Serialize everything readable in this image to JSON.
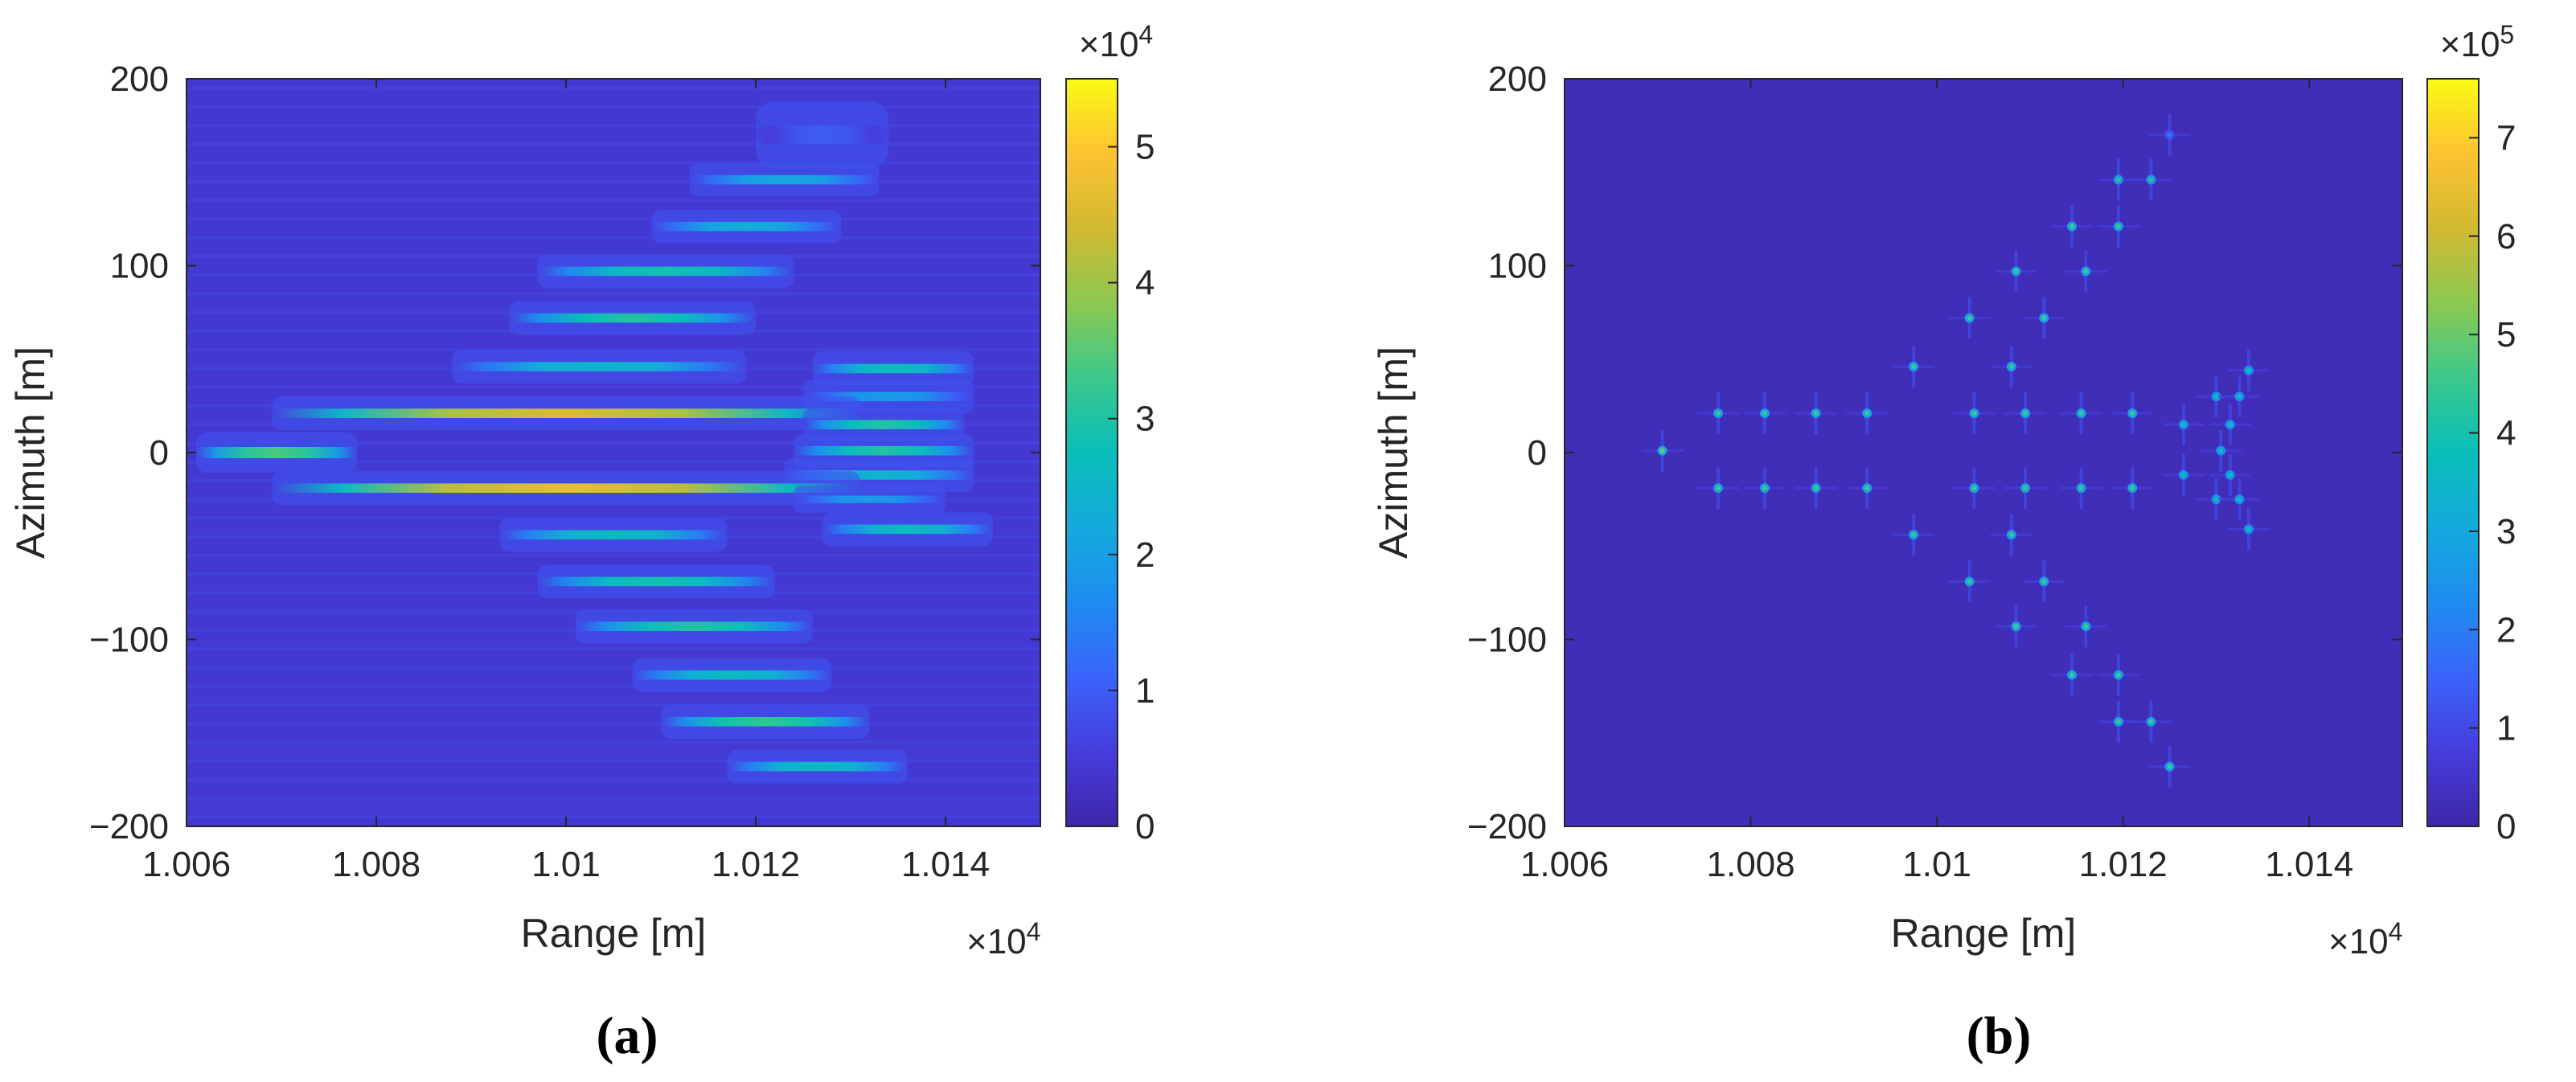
{
  "chart_data": [
    {
      "type": "heatmap",
      "panel": "a",
      "caption": "(a)",
      "xlabel": "Range [m]",
      "ylabel": "Azimuth [m]",
      "xlim": [
        1.006,
        1.015
      ],
      "ylim": [
        -200,
        200
      ],
      "x_ticks": [
        1.006,
        1.008,
        1.01,
        1.012,
        1.014
      ],
      "x_tick_labels": [
        "1.006",
        "1.008",
        "1.01",
        "1.012",
        "1.014"
      ],
      "y_ticks": [
        200,
        100,
        0,
        -100,
        -200
      ],
      "y_tick_labels": [
        "200",
        "100",
        "0",
        "−100",
        "−200"
      ],
      "x_multiplier": "×10",
      "x_multiplier_exp": "4",
      "colorbar": {
        "min": 0,
        "max": 5.5,
        "ticks": [
          0,
          1,
          2,
          3,
          4,
          5
        ],
        "tick_labels": [
          "0",
          "1",
          "2",
          "3",
          "4",
          "5"
        ],
        "multiplier": "×10",
        "multiplier_exp": "4"
      },
      "background_level": 0.08,
      "streaks": [
        {
          "x0": 1.0123,
          "x1": 1.0131,
          "y": 170,
          "peak": 0.18,
          "height": 10
        },
        {
          "x0": 1.0116,
          "x1": 1.013,
          "y": 146,
          "peak": 0.4,
          "height": 5
        },
        {
          "x0": 1.0112,
          "x1": 1.0126,
          "y": 121,
          "peak": 0.42,
          "height": 5
        },
        {
          "x0": 1.01,
          "x1": 1.0121,
          "y": 97,
          "peak": 0.52,
          "height": 5
        },
        {
          "x0": 1.0097,
          "x1": 1.0117,
          "y": 72,
          "peak": 0.55,
          "height": 5
        },
        {
          "x0": 1.0091,
          "x1": 1.0116,
          "y": 46,
          "peak": 0.45,
          "height": 5
        },
        {
          "x0": 1.0129,
          "x1": 1.014,
          "y": 45,
          "peak": 0.5,
          "height": 5
        },
        {
          "x0": 1.0128,
          "x1": 1.014,
          "y": 30,
          "peak": 0.35,
          "height": 5
        },
        {
          "x0": 1.0072,
          "x1": 1.0128,
          "y": 21,
          "peak": 0.82,
          "height": 5
        },
        {
          "x0": 1.0128,
          "x1": 1.0139,
          "y": 15,
          "peak": 0.55,
          "height": 5
        },
        {
          "x0": 1.0064,
          "x1": 1.0075,
          "y": 0,
          "peak": 0.62,
          "height": 6
        },
        {
          "x0": 1.0127,
          "x1": 1.014,
          "y": 1,
          "peak": 0.55,
          "height": 5
        },
        {
          "x0": 1.0126,
          "x1": 1.014,
          "y": -12,
          "peak": 0.45,
          "height": 5
        },
        {
          "x0": 1.0072,
          "x1": 1.0128,
          "y": -19,
          "peak": 0.85,
          "height": 5
        },
        {
          "x0": 1.0127,
          "x1": 1.0137,
          "y": -25,
          "peak": 0.35,
          "height": 4
        },
        {
          "x0": 1.013,
          "x1": 1.0142,
          "y": -41,
          "peak": 0.48,
          "height": 5
        },
        {
          "x0": 1.0096,
          "x1": 1.0114,
          "y": -44,
          "peak": 0.48,
          "height": 5
        },
        {
          "x0": 1.01,
          "x1": 1.0119,
          "y": -69,
          "peak": 0.52,
          "height": 5
        },
        {
          "x0": 1.0104,
          "x1": 1.0123,
          "y": -93,
          "peak": 0.55,
          "height": 5
        },
        {
          "x0": 1.011,
          "x1": 1.0125,
          "y": -119,
          "peak": 0.48,
          "height": 5
        },
        {
          "x0": 1.0113,
          "x1": 1.0129,
          "y": -144,
          "peak": 0.58,
          "height": 5
        },
        {
          "x0": 1.012,
          "x1": 1.0133,
          "y": -168,
          "peak": 0.48,
          "height": 5
        }
      ]
    },
    {
      "type": "heatmap",
      "panel": "b",
      "caption": "(b)",
      "xlabel": "Range [m]",
      "ylabel": "Azimuth [m]",
      "xlim": [
        1.006,
        1.015
      ],
      "ylim": [
        -200,
        200
      ],
      "x_ticks": [
        1.006,
        1.008,
        1.01,
        1.012,
        1.014
      ],
      "x_tick_labels": [
        "1.006",
        "1.008",
        "1.01",
        "1.012",
        "1.014"
      ],
      "y_ticks": [
        200,
        100,
        0,
        -100,
        -200
      ],
      "y_tick_labels": [
        "200",
        "100",
        "0",
        "−100",
        "−200"
      ],
      "x_multiplier": "×10",
      "x_multiplier_exp": "4",
      "colorbar": {
        "min": 0,
        "max": 7.6,
        "ticks": [
          0,
          1,
          2,
          3,
          4,
          5,
          6,
          7
        ],
        "tick_labels": [
          "0",
          "1",
          "2",
          "3",
          "4",
          "5",
          "6",
          "7"
        ],
        "multiplier": "×10",
        "multiplier_exp": "5"
      },
      "background_level": 0.03,
      "points": [
        {
          "x": 10125.0,
          "y": 170,
          "v": 0.25
        },
        {
          "x": 10119.5,
          "y": 146,
          "v": 0.55
        },
        {
          "x": 10123.0,
          "y": 146,
          "v": 0.55
        },
        {
          "x": 10114.5,
          "y": 121,
          "v": 0.6
        },
        {
          "x": 10119.5,
          "y": 121,
          "v": 0.6
        },
        {
          "x": 10108.5,
          "y": 97,
          "v": 0.6
        },
        {
          "x": 10116.0,
          "y": 97,
          "v": 0.6
        },
        {
          "x": 10103.5,
          "y": 72,
          "v": 0.6
        },
        {
          "x": 10111.5,
          "y": 72,
          "v": 0.6
        },
        {
          "x": 10097.5,
          "y": 46,
          "v": 0.6
        },
        {
          "x": 10108.0,
          "y": 46,
          "v": 0.6
        },
        {
          "x": 10133.5,
          "y": 44,
          "v": 0.5
        },
        {
          "x": 10130.0,
          "y": 30,
          "v": 0.5
        },
        {
          "x": 10132.5,
          "y": 30,
          "v": 0.5
        },
        {
          "x": 10076.5,
          "y": 21,
          "v": 0.6
        },
        {
          "x": 10081.5,
          "y": 21,
          "v": 0.6
        },
        {
          "x": 10087.0,
          "y": 21,
          "v": 0.6
        },
        {
          "x": 10092.5,
          "y": 21,
          "v": 0.6
        },
        {
          "x": 10104.0,
          "y": 21,
          "v": 0.6
        },
        {
          "x": 10109.5,
          "y": 21,
          "v": 0.6
        },
        {
          "x": 10115.5,
          "y": 21,
          "v": 0.6
        },
        {
          "x": 10121.0,
          "y": 21,
          "v": 0.6
        },
        {
          "x": 10126.5,
          "y": 15,
          "v": 0.5
        },
        {
          "x": 10131.5,
          "y": 15,
          "v": 0.5
        },
        {
          "x": 10070.5,
          "y": 1,
          "v": 0.65
        },
        {
          "x": 10130.5,
          "y": 1,
          "v": 0.5
        },
        {
          "x": 10126.5,
          "y": -12,
          "v": 0.5
        },
        {
          "x": 10131.5,
          "y": -12,
          "v": 0.5
        },
        {
          "x": 10076.5,
          "y": -19,
          "v": 0.6
        },
        {
          "x": 10081.5,
          "y": -19,
          "v": 0.6
        },
        {
          "x": 10087.0,
          "y": -19,
          "v": 0.6
        },
        {
          "x": 10092.5,
          "y": -19,
          "v": 0.6
        },
        {
          "x": 10104.0,
          "y": -19,
          "v": 0.6
        },
        {
          "x": 10109.5,
          "y": -19,
          "v": 0.6
        },
        {
          "x": 10115.5,
          "y": -19,
          "v": 0.6
        },
        {
          "x": 10121.0,
          "y": -19,
          "v": 0.6
        },
        {
          "x": 10130.0,
          "y": -25,
          "v": 0.5
        },
        {
          "x": 10132.5,
          "y": -25,
          "v": 0.5
        },
        {
          "x": 10133.5,
          "y": -41,
          "v": 0.5
        },
        {
          "x": 10097.5,
          "y": -44,
          "v": 0.6
        },
        {
          "x": 10108.0,
          "y": -44,
          "v": 0.6
        },
        {
          "x": 10103.5,
          "y": -69,
          "v": 0.6
        },
        {
          "x": 10111.5,
          "y": -69,
          "v": 0.6
        },
        {
          "x": 10108.5,
          "y": -93,
          "v": 0.6
        },
        {
          "x": 10116.0,
          "y": -93,
          "v": 0.6
        },
        {
          "x": 10114.5,
          "y": -119,
          "v": 0.6
        },
        {
          "x": 10119.5,
          "y": -119,
          "v": 0.6
        },
        {
          "x": 10119.5,
          "y": -144,
          "v": 0.6
        },
        {
          "x": 10123.0,
          "y": -144,
          "v": 0.6
        },
        {
          "x": 10125.0,
          "y": -168,
          "v": 0.6
        }
      ]
    }
  ]
}
